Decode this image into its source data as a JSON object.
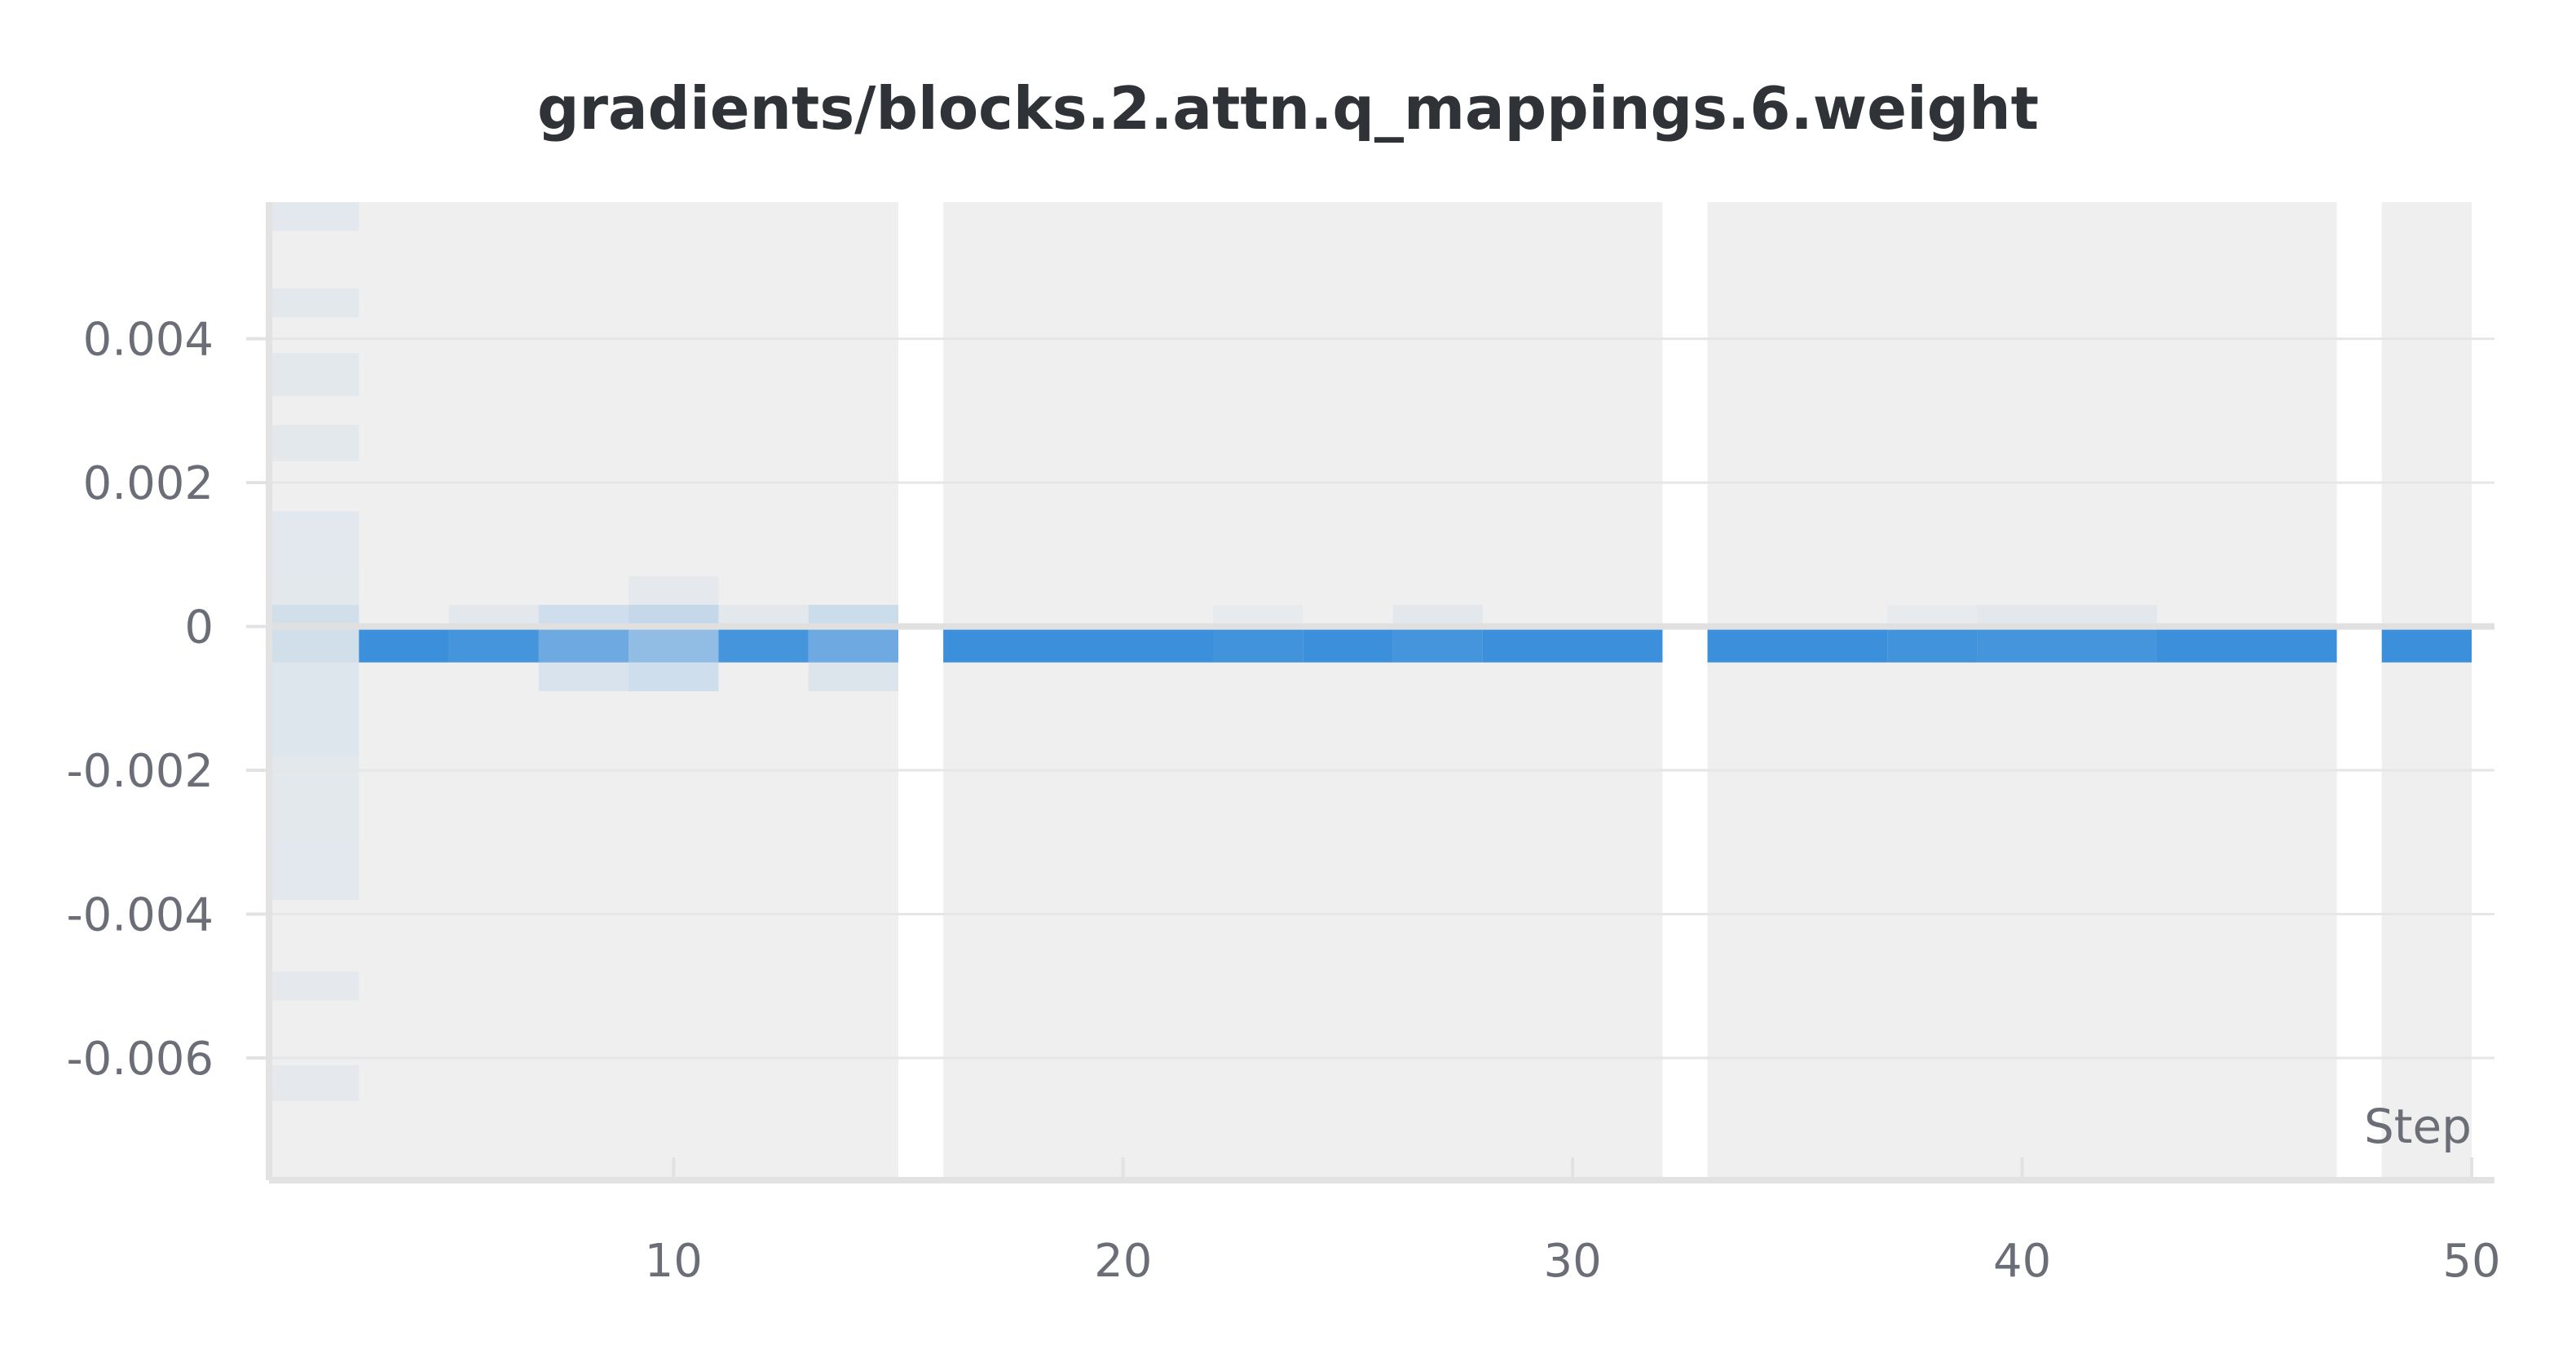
{
  "chart_data": {
    "type": "heatmap",
    "title": "gradients/blocks.2.attn.q_mappings.6.weight",
    "xlabel": "Step",
    "ylabel": "",
    "xlim": [
      1,
      50
    ],
    "ylim": [
      -0.0077,
      0.0059
    ],
    "x_ticks": [
      "10",
      "20",
      "30",
      "40",
      "50"
    ],
    "y_ticks": [
      "0.004",
      "0.002",
      "0",
      "-0.002",
      "-0.004",
      "-0.006"
    ],
    "grid": true,
    "colors": {
      "background_band": "#efefef",
      "cell_base": "#3b8fdb",
      "gridline": "#e6e6e6",
      "zero_line": "#e0e0e0",
      "axis": "#e2e2e2"
    },
    "step_segments": [
      [
        1,
        15
      ],
      [
        16,
        32
      ],
      [
        33,
        47
      ],
      [
        48,
        50
      ]
    ],
    "cells": [
      {
        "x0": 1,
        "x1": 3,
        "y0": 0.0055,
        "y1": 0.0059,
        "density": 0.07
      },
      {
        "x0": 1,
        "x1": 3,
        "y0": 0.0043,
        "y1": 0.0047,
        "density": 0.06
      },
      {
        "x0": 1,
        "x1": 3,
        "y0": 0.0032,
        "y1": 0.0038,
        "density": 0.06
      },
      {
        "x0": 1,
        "x1": 3,
        "y0": 0.0023,
        "y1": 0.0028,
        "density": 0.06
      },
      {
        "x0": 1,
        "x1": 3,
        "y0": 0.0008,
        "y1": 0.0016,
        "density": 0.07
      },
      {
        "x0": 1,
        "x1": 3,
        "y0": 0.0003,
        "y1": 0.0008,
        "density": 0.06
      },
      {
        "x0": 1,
        "x1": 3,
        "y0": -0.0005,
        "y1": 0.0003,
        "density": 0.16
      },
      {
        "x0": 1,
        "x1": 3,
        "y0": -0.0018,
        "y1": -0.0005,
        "density": 0.09
      },
      {
        "x0": 1,
        "x1": 3,
        "y0": -0.003,
        "y1": -0.0018,
        "density": 0.06
      },
      {
        "x0": 1,
        "x1": 3,
        "y0": -0.0038,
        "y1": -0.003,
        "density": 0.07
      },
      {
        "x0": 1,
        "x1": 3,
        "y0": -0.0052,
        "y1": -0.0048,
        "density": 0.05
      },
      {
        "x0": 1,
        "x1": 3,
        "y0": -0.0066,
        "y1": -0.0061,
        "density": 0.05
      },
      {
        "x0": 3,
        "x1": 5,
        "y0": -0.0005,
        "y1": 0.0,
        "density": 1.0
      },
      {
        "x0": 5,
        "x1": 7,
        "y0": 0.0,
        "y1": 0.0003,
        "density": 0.06
      },
      {
        "x0": 5,
        "x1": 7,
        "y0": -0.0005,
        "y1": 0.0,
        "density": 0.95
      },
      {
        "x0": 7,
        "x1": 9,
        "y0": 0.0,
        "y1": 0.0003,
        "density": 0.18
      },
      {
        "x0": 7,
        "x1": 9,
        "y0": -0.0005,
        "y1": 0.0,
        "density": 0.72
      },
      {
        "x0": 7,
        "x1": 9,
        "y0": -0.0009,
        "y1": -0.0005,
        "density": 0.12
      },
      {
        "x0": 9,
        "x1": 11,
        "y0": 0.0003,
        "y1": 0.0007,
        "density": 0.05
      },
      {
        "x0": 9,
        "x1": 11,
        "y0": 0.0,
        "y1": 0.0003,
        "density": 0.24
      },
      {
        "x0": 9,
        "x1": 11,
        "y0": -0.0005,
        "y1": 0.0,
        "density": 0.52
      },
      {
        "x0": 9,
        "x1": 11,
        "y0": -0.0009,
        "y1": -0.0005,
        "density": 0.18
      },
      {
        "x0": 11,
        "x1": 13,
        "y0": 0.0,
        "y1": 0.0003,
        "density": 0.06
      },
      {
        "x0": 11,
        "x1": 13,
        "y0": -0.0005,
        "y1": 0.0,
        "density": 0.95
      },
      {
        "x0": 13,
        "x1": 15,
        "y0": 0.0,
        "y1": 0.0003,
        "density": 0.2
      },
      {
        "x0": 13,
        "x1": 15,
        "y0": -0.0005,
        "y1": 0.0,
        "density": 0.72
      },
      {
        "x0": 13,
        "x1": 15,
        "y0": -0.0009,
        "y1": -0.0005,
        "density": 0.1
      },
      {
        "x0": 16,
        "x1": 22,
        "y0": -0.0005,
        "y1": 0.0,
        "density": 1.0
      },
      {
        "x0": 22,
        "x1": 24,
        "y0": 0.0,
        "y1": 0.0003,
        "density": 0.04
      },
      {
        "x0": 22,
        "x1": 24,
        "y0": -0.0005,
        "y1": 0.0,
        "density": 0.97
      },
      {
        "x0": 24,
        "x1": 26,
        "y0": -0.0005,
        "y1": 0.0,
        "density": 1.0
      },
      {
        "x0": 26,
        "x1": 28,
        "y0": 0.0,
        "y1": 0.0003,
        "density": 0.06
      },
      {
        "x0": 26,
        "x1": 28,
        "y0": -0.0005,
        "y1": 0.0,
        "density": 0.95
      },
      {
        "x0": 28,
        "x1": 32,
        "y0": -0.0005,
        "y1": 0.0,
        "density": 1.0
      },
      {
        "x0": 33,
        "x1": 37,
        "y0": -0.0005,
        "y1": 0.0,
        "density": 1.0
      },
      {
        "x0": 37,
        "x1": 39,
        "y0": 0.0,
        "y1": 0.0003,
        "density": 0.04
      },
      {
        "x0": 37,
        "x1": 39,
        "y0": -0.0005,
        "y1": 0.0,
        "density": 0.97
      },
      {
        "x0": 39,
        "x1": 43,
        "y0": 0.0,
        "y1": 0.0003,
        "density": 0.06
      },
      {
        "x0": 39,
        "x1": 43,
        "y0": -0.0005,
        "y1": 0.0,
        "density": 0.95
      },
      {
        "x0": 43,
        "x1": 47,
        "y0": -0.0005,
        "y1": 0.0,
        "density": 1.0
      },
      {
        "x0": 48,
        "x1": 50,
        "y0": -0.0005,
        "y1": 0.0,
        "density": 1.0
      }
    ]
  }
}
